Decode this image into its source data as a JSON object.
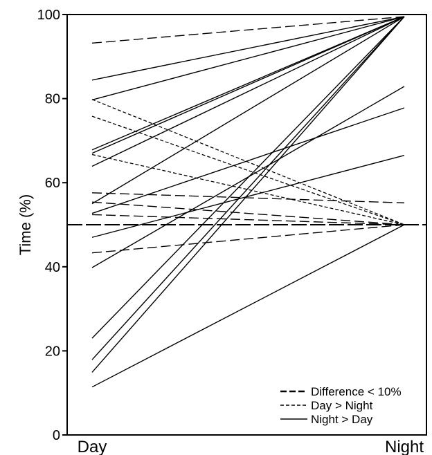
{
  "chart_data": {
    "type": "line",
    "ylabel": "Time (%)",
    "ylim": [
      0,
      100
    ],
    "yticks": [
      0,
      20,
      40,
      60,
      80,
      100
    ],
    "categories": [
      "Day",
      "Night"
    ],
    "grid": false,
    "legend_position": "bottom-right",
    "reference_line": {
      "y": 50,
      "style": "long-dash"
    },
    "legend": [
      {
        "label": "Difference < 10%",
        "style": "long-dash"
      },
      {
        "label": "Day > Night",
        "style": "short-dash"
      },
      {
        "label": "Night > Day",
        "style": "solid"
      }
    ],
    "series": [
      {
        "group": "Difference < 10%",
        "values": [
          93.2,
          99.5
        ]
      },
      {
        "group": "Difference < 10%",
        "values": [
          57.6,
          55.2
        ]
      },
      {
        "group": "Difference < 10%",
        "values": [
          55.4,
          50.0
        ]
      },
      {
        "group": "Difference < 10%",
        "values": [
          52.4,
          50.0
        ]
      },
      {
        "group": "Difference < 10%",
        "values": [
          43.3,
          50.0
        ]
      },
      {
        "group": "Day > Night",
        "values": [
          79.8,
          50.0
        ]
      },
      {
        "group": "Day > Night",
        "values": [
          75.8,
          50.0
        ]
      },
      {
        "group": "Day > Night",
        "values": [
          66.7,
          50.0
        ]
      },
      {
        "group": "Night > Day",
        "values": [
          84.4,
          99.5
        ]
      },
      {
        "group": "Night > Day",
        "values": [
          79.7,
          99.5
        ]
      },
      {
        "group": "Night > Day",
        "values": [
          67.8,
          99.5
        ]
      },
      {
        "group": "Night > Day",
        "values": [
          67.0,
          99.5
        ]
      },
      {
        "group": "Night > Day",
        "values": [
          63.9,
          99.5
        ]
      },
      {
        "group": "Night > Day",
        "values": [
          55.0,
          99.5
        ]
      },
      {
        "group": "Night > Day",
        "values": [
          52.7,
          77.8
        ]
      },
      {
        "group": "Night > Day",
        "values": [
          47.0,
          66.5
        ]
      },
      {
        "group": "Night > Day",
        "values": [
          39.8,
          82.9
        ]
      },
      {
        "group": "Night > Day",
        "values": [
          23.0,
          99.5
        ]
      },
      {
        "group": "Night > Day",
        "values": [
          17.9,
          99.5
        ]
      },
      {
        "group": "Night > Day",
        "values": [
          14.9,
          99.5
        ]
      },
      {
        "group": "Night > Day",
        "values": [
          11.4,
          50.0
        ]
      }
    ]
  }
}
